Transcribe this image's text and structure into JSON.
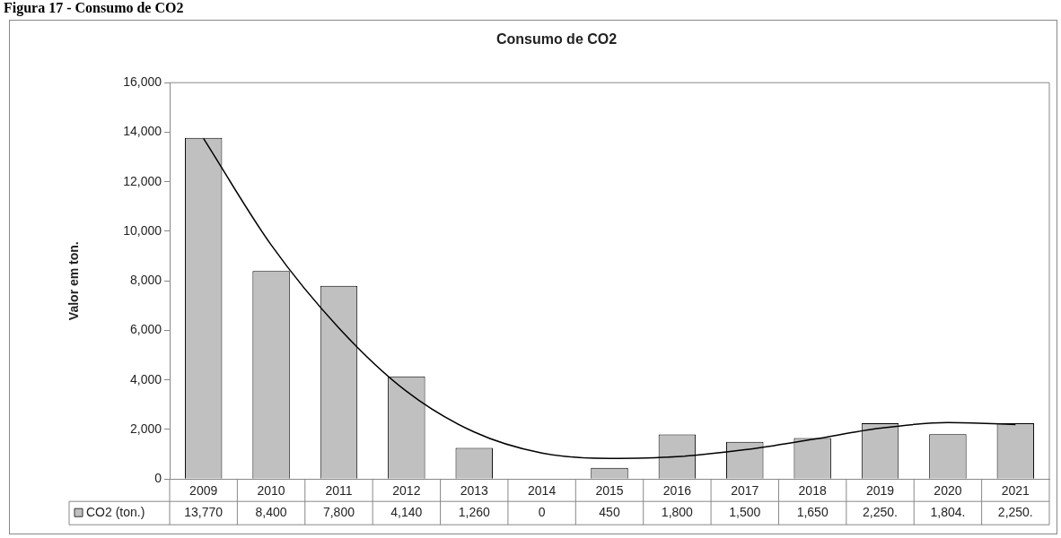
{
  "chart_data": {
    "type": "bar",
    "title": "Consumo de CO2",
    "ylabel": "Valor em ton.",
    "annotations": [
      "Figura 17 - Consumo de CO2"
    ],
    "categories": [
      "2009",
      "2010",
      "2011",
      "2012",
      "2013",
      "2014",
      "2015",
      "2016",
      "2017",
      "2018",
      "2019",
      "2020",
      "2021"
    ],
    "series": [
      {
        "name": "CO2 (ton.)",
        "color": "#c0c0c0",
        "values": [
          13770,
          8400,
          7800,
          4140,
          1260,
          0,
          450,
          1800,
          1500,
          1650,
          2250,
          1804,
          2250
        ],
        "value_labels": [
          "13,770",
          "8,400",
          "7,800",
          "4,140",
          "1,260",
          "0",
          "450",
          "1,800",
          "1,500",
          "1,650",
          "2,250.",
          "1,804.",
          "2,250."
        ]
      },
      {
        "type": "line",
        "color": "#000000",
        "values": [
          13750,
          9450,
          6100,
          3540,
          1900,
          1050,
          830,
          900,
          1180,
          1600,
          2050,
          2280,
          2200
        ]
      }
    ],
    "ylim": [
      0,
      16000
    ],
    "yticks": [
      0,
      {
        "value": 2000,
        "label": "2,000"
      },
      {
        "value": 4000,
        "label": "4,000"
      },
      {
        "value": 6000,
        "label": "6,000"
      },
      {
        "value": 8000,
        "label": "8,000"
      },
      {
        "value": 10000,
        "label": "10,000"
      },
      {
        "value": 12000,
        "label": "12,000"
      },
      {
        "value": 14000,
        "label": "14,000"
      },
      {
        "value": 16000,
        "label": "16,000"
      }
    ],
    "grid": false,
    "legend": "bottom",
    "marker": "none"
  }
}
